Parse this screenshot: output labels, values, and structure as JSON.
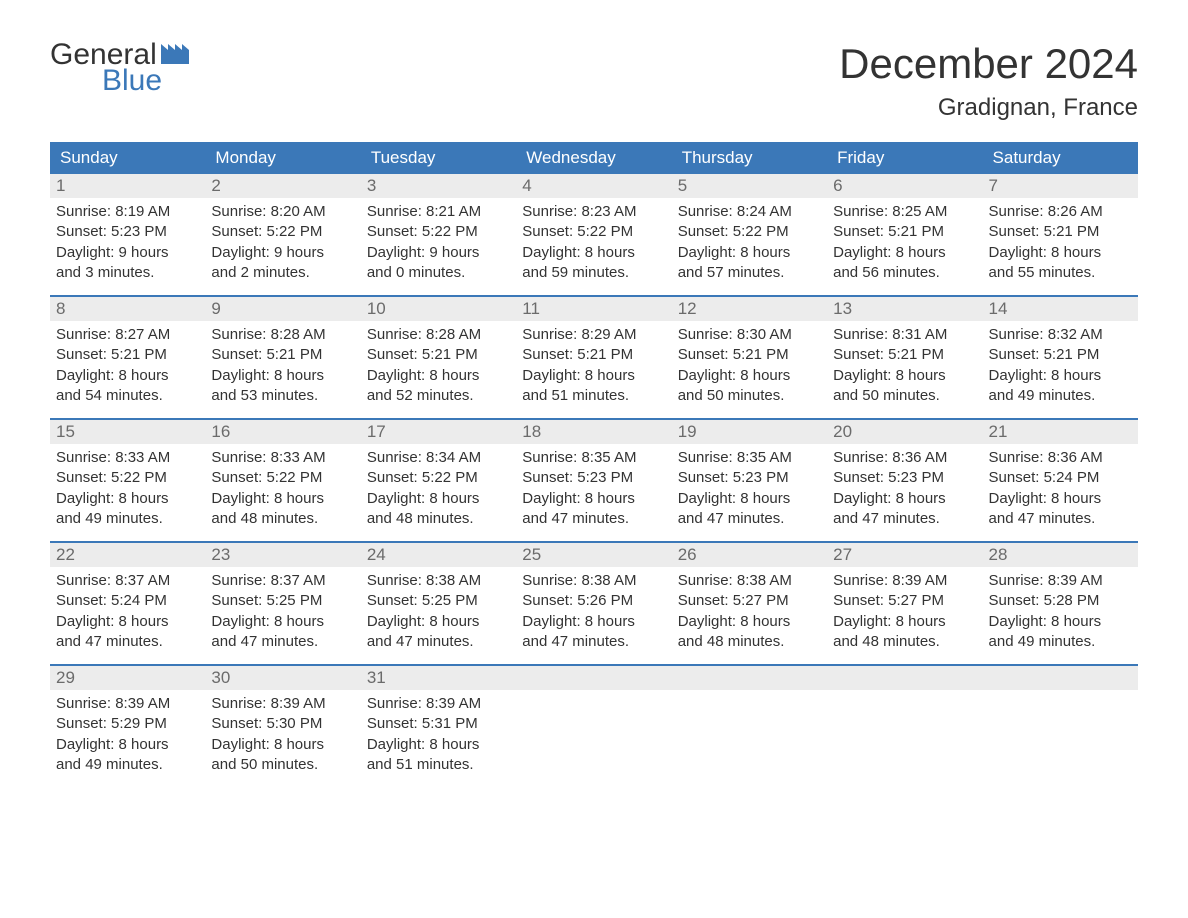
{
  "colors": {
    "brand_blue": "#3b78b8",
    "header_text": "#333333",
    "daynum_bg": "#ececec",
    "daynum_color": "#6b6b6b",
    "body_text": "#333333",
    "background": "#ffffff",
    "weekday_text": "#ffffff",
    "row_divider": "#3b78b8"
  },
  "typography": {
    "title_fontsize": 42,
    "location_fontsize": 24,
    "weekday_fontsize": 17,
    "daynum_fontsize": 17,
    "body_fontsize": 15,
    "font_family": "Arial"
  },
  "logo": {
    "line1": "General",
    "line2": "Blue"
  },
  "title": "December 2024",
  "location": "Gradignan, France",
  "weekdays": [
    "Sunday",
    "Monday",
    "Tuesday",
    "Wednesday",
    "Thursday",
    "Friday",
    "Saturday"
  ],
  "weeks": [
    [
      {
        "n": "1",
        "sunrise": "Sunrise: 8:19 AM",
        "sunset": "Sunset: 5:23 PM",
        "day1": "Daylight: 9 hours",
        "day2": "and 3 minutes."
      },
      {
        "n": "2",
        "sunrise": "Sunrise: 8:20 AM",
        "sunset": "Sunset: 5:22 PM",
        "day1": "Daylight: 9 hours",
        "day2": "and 2 minutes."
      },
      {
        "n": "3",
        "sunrise": "Sunrise: 8:21 AM",
        "sunset": "Sunset: 5:22 PM",
        "day1": "Daylight: 9 hours",
        "day2": "and 0 minutes."
      },
      {
        "n": "4",
        "sunrise": "Sunrise: 8:23 AM",
        "sunset": "Sunset: 5:22 PM",
        "day1": "Daylight: 8 hours",
        "day2": "and 59 minutes."
      },
      {
        "n": "5",
        "sunrise": "Sunrise: 8:24 AM",
        "sunset": "Sunset: 5:22 PM",
        "day1": "Daylight: 8 hours",
        "day2": "and 57 minutes."
      },
      {
        "n": "6",
        "sunrise": "Sunrise: 8:25 AM",
        "sunset": "Sunset: 5:21 PM",
        "day1": "Daylight: 8 hours",
        "day2": "and 56 minutes."
      },
      {
        "n": "7",
        "sunrise": "Sunrise: 8:26 AM",
        "sunset": "Sunset: 5:21 PM",
        "day1": "Daylight: 8 hours",
        "day2": "and 55 minutes."
      }
    ],
    [
      {
        "n": "8",
        "sunrise": "Sunrise: 8:27 AM",
        "sunset": "Sunset: 5:21 PM",
        "day1": "Daylight: 8 hours",
        "day2": "and 54 minutes."
      },
      {
        "n": "9",
        "sunrise": "Sunrise: 8:28 AM",
        "sunset": "Sunset: 5:21 PM",
        "day1": "Daylight: 8 hours",
        "day2": "and 53 minutes."
      },
      {
        "n": "10",
        "sunrise": "Sunrise: 8:28 AM",
        "sunset": "Sunset: 5:21 PM",
        "day1": "Daylight: 8 hours",
        "day2": "and 52 minutes."
      },
      {
        "n": "11",
        "sunrise": "Sunrise: 8:29 AM",
        "sunset": "Sunset: 5:21 PM",
        "day1": "Daylight: 8 hours",
        "day2": "and 51 minutes."
      },
      {
        "n": "12",
        "sunrise": "Sunrise: 8:30 AM",
        "sunset": "Sunset: 5:21 PM",
        "day1": "Daylight: 8 hours",
        "day2": "and 50 minutes."
      },
      {
        "n": "13",
        "sunrise": "Sunrise: 8:31 AM",
        "sunset": "Sunset: 5:21 PM",
        "day1": "Daylight: 8 hours",
        "day2": "and 50 minutes."
      },
      {
        "n": "14",
        "sunrise": "Sunrise: 8:32 AM",
        "sunset": "Sunset: 5:21 PM",
        "day1": "Daylight: 8 hours",
        "day2": "and 49 minutes."
      }
    ],
    [
      {
        "n": "15",
        "sunrise": "Sunrise: 8:33 AM",
        "sunset": "Sunset: 5:22 PM",
        "day1": "Daylight: 8 hours",
        "day2": "and 49 minutes."
      },
      {
        "n": "16",
        "sunrise": "Sunrise: 8:33 AM",
        "sunset": "Sunset: 5:22 PM",
        "day1": "Daylight: 8 hours",
        "day2": "and 48 minutes."
      },
      {
        "n": "17",
        "sunrise": "Sunrise: 8:34 AM",
        "sunset": "Sunset: 5:22 PM",
        "day1": "Daylight: 8 hours",
        "day2": "and 48 minutes."
      },
      {
        "n": "18",
        "sunrise": "Sunrise: 8:35 AM",
        "sunset": "Sunset: 5:23 PM",
        "day1": "Daylight: 8 hours",
        "day2": "and 47 minutes."
      },
      {
        "n": "19",
        "sunrise": "Sunrise: 8:35 AM",
        "sunset": "Sunset: 5:23 PM",
        "day1": "Daylight: 8 hours",
        "day2": "and 47 minutes."
      },
      {
        "n": "20",
        "sunrise": "Sunrise: 8:36 AM",
        "sunset": "Sunset: 5:23 PM",
        "day1": "Daylight: 8 hours",
        "day2": "and 47 minutes."
      },
      {
        "n": "21",
        "sunrise": "Sunrise: 8:36 AM",
        "sunset": "Sunset: 5:24 PM",
        "day1": "Daylight: 8 hours",
        "day2": "and 47 minutes."
      }
    ],
    [
      {
        "n": "22",
        "sunrise": "Sunrise: 8:37 AM",
        "sunset": "Sunset: 5:24 PM",
        "day1": "Daylight: 8 hours",
        "day2": "and 47 minutes."
      },
      {
        "n": "23",
        "sunrise": "Sunrise: 8:37 AM",
        "sunset": "Sunset: 5:25 PM",
        "day1": "Daylight: 8 hours",
        "day2": "and 47 minutes."
      },
      {
        "n": "24",
        "sunrise": "Sunrise: 8:38 AM",
        "sunset": "Sunset: 5:25 PM",
        "day1": "Daylight: 8 hours",
        "day2": "and 47 minutes."
      },
      {
        "n": "25",
        "sunrise": "Sunrise: 8:38 AM",
        "sunset": "Sunset: 5:26 PM",
        "day1": "Daylight: 8 hours",
        "day2": "and 47 minutes."
      },
      {
        "n": "26",
        "sunrise": "Sunrise: 8:38 AM",
        "sunset": "Sunset: 5:27 PM",
        "day1": "Daylight: 8 hours",
        "day2": "and 48 minutes."
      },
      {
        "n": "27",
        "sunrise": "Sunrise: 8:39 AM",
        "sunset": "Sunset: 5:27 PM",
        "day1": "Daylight: 8 hours",
        "day2": "and 48 minutes."
      },
      {
        "n": "28",
        "sunrise": "Sunrise: 8:39 AM",
        "sunset": "Sunset: 5:28 PM",
        "day1": "Daylight: 8 hours",
        "day2": "and 49 minutes."
      }
    ],
    [
      {
        "n": "29",
        "sunrise": "Sunrise: 8:39 AM",
        "sunset": "Sunset: 5:29 PM",
        "day1": "Daylight: 8 hours",
        "day2": "and 49 minutes."
      },
      {
        "n": "30",
        "sunrise": "Sunrise: 8:39 AM",
        "sunset": "Sunset: 5:30 PM",
        "day1": "Daylight: 8 hours",
        "day2": "and 50 minutes."
      },
      {
        "n": "31",
        "sunrise": "Sunrise: 8:39 AM",
        "sunset": "Sunset: 5:31 PM",
        "day1": "Daylight: 8 hours",
        "day2": "and 51 minutes."
      },
      null,
      null,
      null,
      null
    ]
  ]
}
